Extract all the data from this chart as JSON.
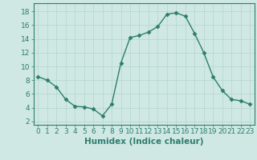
{
  "x": [
    0,
    1,
    2,
    3,
    4,
    5,
    6,
    7,
    8,
    9,
    10,
    11,
    12,
    13,
    14,
    15,
    16,
    17,
    18,
    19,
    20,
    21,
    22,
    23
  ],
  "y": [
    8.5,
    8.0,
    7.0,
    5.2,
    4.2,
    4.1,
    3.8,
    2.8,
    4.5,
    10.5,
    14.2,
    14.5,
    15.0,
    15.8,
    17.6,
    17.8,
    17.3,
    14.8,
    12.0,
    8.5,
    6.5,
    5.2,
    5.0,
    4.5
  ],
  "line_color": "#2e7d6e",
  "marker": "D",
  "markersize": 2.5,
  "linewidth": 1.0,
  "bg_color": "#cfe8e3",
  "grid_color": "#b5d5cf",
  "xlabel": "Humidex (Indice chaleur)",
  "xlim": [
    -0.5,
    23.5
  ],
  "ylim": [
    1.5,
    19.2
  ],
  "xticks": [
    0,
    1,
    2,
    3,
    4,
    5,
    6,
    7,
    8,
    9,
    10,
    11,
    12,
    13,
    14,
    15,
    16,
    17,
    18,
    19,
    20,
    21,
    22,
    23
  ],
  "yticks": [
    2,
    4,
    6,
    8,
    10,
    12,
    14,
    16,
    18
  ],
  "tick_color": "#2e7d6e",
  "label_color": "#2e7d6e",
  "xlabel_fontsize": 7.5,
  "tick_fontsize": 6.5
}
